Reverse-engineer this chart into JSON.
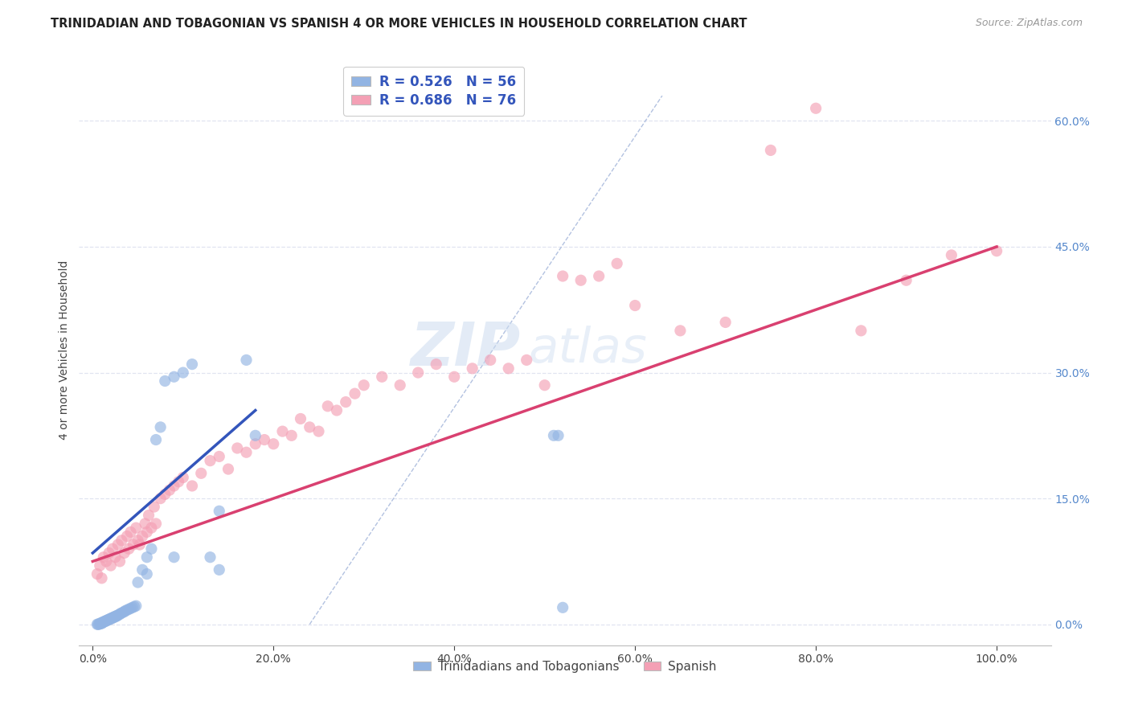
{
  "title": "TRINIDADIAN AND TOBAGONIAN VS SPANISH 4 OR MORE VEHICLES IN HOUSEHOLD CORRELATION CHART",
  "source": "Source: ZipAtlas.com",
  "ylabel": "4 or more Vehicles in Household",
  "legend1_label": "Trinidadians and Tobagonians",
  "legend2_label": "Spanish",
  "r1": 0.526,
  "n1": 56,
  "r2": 0.686,
  "n2": 76,
  "color1": "#92b4e3",
  "color2": "#f4a0b5",
  "line1_color": "#3355bb",
  "line2_color": "#d94070",
  "dashed_line_color": "#aabbdd",
  "x_ticks": [
    0.0,
    0.2,
    0.4,
    0.6,
    0.8,
    1.0
  ],
  "x_tick_labels": [
    "0.0%",
    "20.0%",
    "40.0%",
    "60.0%",
    "80.0%",
    "100.0%"
  ],
  "y_ticks": [
    0.0,
    0.15,
    0.3,
    0.45,
    0.6
  ],
  "y_tick_labels_right": [
    "0.0%",
    "15.0%",
    "30.0%",
    "45.0%",
    "60.0%"
  ],
  "xlim": [
    -0.015,
    1.06
  ],
  "ylim": [
    -0.025,
    0.68
  ],
  "background_color": "#ffffff",
  "grid_color": "#e0e4f0",
  "title_fontsize": 10.5,
  "axis_label_fontsize": 10,
  "tick_fontsize": 10,
  "legend_fontsize": 11,
  "r_text_fontsize": 12,
  "tri_x": [
    0.005,
    0.006,
    0.007,
    0.008,
    0.009,
    0.01,
    0.01,
    0.011,
    0.012,
    0.013,
    0.014,
    0.015,
    0.016,
    0.017,
    0.018,
    0.019,
    0.02,
    0.021,
    0.022,
    0.023,
    0.024,
    0.025,
    0.026,
    0.027,
    0.028,
    0.03,
    0.031,
    0.033,
    0.035,
    0.036,
    0.038,
    0.04,
    0.042,
    0.044,
    0.046,
    0.048,
    0.05,
    0.055,
    0.06,
    0.065,
    0.07,
    0.075,
    0.08,
    0.09,
    0.1,
    0.11,
    0.13,
    0.14,
    0.17,
    0.18,
    0.51,
    0.515,
    0.52,
    0.14,
    0.09,
    0.06
  ],
  "tri_y": [
    0.0,
    0.0,
    0.0,
    0.001,
    0.001,
    0.001,
    0.002,
    0.002,
    0.003,
    0.003,
    0.004,
    0.004,
    0.005,
    0.005,
    0.006,
    0.006,
    0.007,
    0.007,
    0.008,
    0.008,
    0.009,
    0.009,
    0.01,
    0.01,
    0.011,
    0.012,
    0.013,
    0.014,
    0.015,
    0.016,
    0.017,
    0.018,
    0.019,
    0.02,
    0.021,
    0.022,
    0.05,
    0.065,
    0.08,
    0.09,
    0.22,
    0.235,
    0.29,
    0.295,
    0.3,
    0.31,
    0.08,
    0.135,
    0.315,
    0.225,
    0.225,
    0.225,
    0.02,
    0.065,
    0.08,
    0.06
  ],
  "spa_x": [
    0.005,
    0.008,
    0.01,
    0.012,
    0.015,
    0.018,
    0.02,
    0.022,
    0.025,
    0.028,
    0.03,
    0.032,
    0.035,
    0.038,
    0.04,
    0.042,
    0.045,
    0.048,
    0.05,
    0.052,
    0.055,
    0.058,
    0.06,
    0.062,
    0.065,
    0.068,
    0.07,
    0.075,
    0.08,
    0.085,
    0.09,
    0.095,
    0.1,
    0.11,
    0.12,
    0.13,
    0.14,
    0.15,
    0.16,
    0.17,
    0.18,
    0.19,
    0.2,
    0.21,
    0.22,
    0.23,
    0.24,
    0.25,
    0.26,
    0.27,
    0.28,
    0.29,
    0.3,
    0.32,
    0.34,
    0.36,
    0.38,
    0.4,
    0.42,
    0.44,
    0.46,
    0.48,
    0.5,
    0.52,
    0.54,
    0.56,
    0.58,
    0.6,
    0.65,
    0.7,
    0.75,
    0.8,
    0.85,
    0.9,
    0.95,
    1.0
  ],
  "spa_y": [
    0.06,
    0.07,
    0.055,
    0.08,
    0.075,
    0.085,
    0.07,
    0.09,
    0.08,
    0.095,
    0.075,
    0.1,
    0.085,
    0.105,
    0.09,
    0.11,
    0.095,
    0.115,
    0.1,
    0.095,
    0.105,
    0.12,
    0.11,
    0.13,
    0.115,
    0.14,
    0.12,
    0.15,
    0.155,
    0.16,
    0.165,
    0.17,
    0.175,
    0.165,
    0.18,
    0.195,
    0.2,
    0.185,
    0.21,
    0.205,
    0.215,
    0.22,
    0.215,
    0.23,
    0.225,
    0.245,
    0.235,
    0.23,
    0.26,
    0.255,
    0.265,
    0.275,
    0.285,
    0.295,
    0.285,
    0.3,
    0.31,
    0.295,
    0.305,
    0.315,
    0.305,
    0.315,
    0.285,
    0.415,
    0.41,
    0.415,
    0.43,
    0.38,
    0.35,
    0.36,
    0.565,
    0.615,
    0.35,
    0.41,
    0.44,
    0.445
  ],
  "blue_line_x": [
    0.0,
    0.18
  ],
  "blue_line_y": [
    0.085,
    0.255
  ],
  "pink_line_x": [
    0.0,
    1.0
  ],
  "pink_line_y": [
    0.075,
    0.45
  ],
  "dash_line_x": [
    0.24,
    0.63
  ],
  "dash_line_y": [
    0.0,
    0.63
  ]
}
